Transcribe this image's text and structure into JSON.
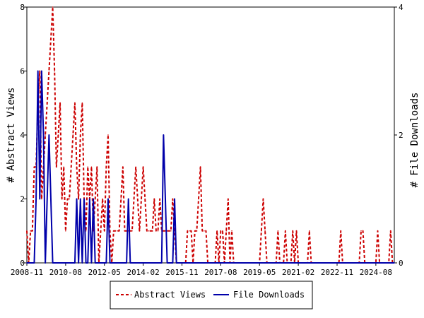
{
  "chart_data": {
    "type": "line",
    "x_start": "2008-11",
    "x_end": "2025-06",
    "x_ticks": [
      "2008-11",
      "2010-08",
      "2012-05",
      "2014-02",
      "2015-11",
      "2017-08",
      "2019-05",
      "2021-02",
      "2022-11",
      "2024-08"
    ],
    "y_left": {
      "label": "# Abstract Views",
      "ylim": [
        0,
        8
      ],
      "ticks": [
        "0",
        "2",
        "4",
        "6",
        "8"
      ]
    },
    "y_right": {
      "label": "# File Downloads",
      "ylim": [
        0,
        4
      ],
      "ticks": [
        "0",
        "2",
        "4"
      ]
    },
    "legend_position": "bottom-center",
    "series": [
      {
        "name": "Abstract Views",
        "axis": "left",
        "color": "#cc0000",
        "style": "dashed",
        "points": [
          [
            "2008-11",
            1
          ],
          [
            "2008-12",
            0
          ],
          [
            "2009-01",
            1
          ],
          [
            "2009-02",
            1
          ],
          [
            "2009-03",
            3
          ],
          [
            "2009-04",
            3
          ],
          [
            "2009-05",
            5
          ],
          [
            "2009-06",
            6
          ],
          [
            "2009-07",
            2
          ],
          [
            "2009-08",
            3
          ],
          [
            "2009-09",
            4
          ],
          [
            "2009-10",
            5
          ],
          [
            "2009-11",
            6
          ],
          [
            "2009-12",
            7
          ],
          [
            "2010-01",
            8
          ],
          [
            "2010-02",
            6
          ],
          [
            "2010-03",
            3
          ],
          [
            "2010-04",
            4
          ],
          [
            "2010-05",
            5
          ],
          [
            "2010-06",
            2
          ],
          [
            "2010-07",
            3
          ],
          [
            "2010-08",
            1
          ],
          [
            "2010-09",
            2
          ],
          [
            "2010-10",
            2
          ],
          [
            "2010-11",
            3
          ],
          [
            "2010-12",
            4
          ],
          [
            "2011-01",
            5
          ],
          [
            "2011-02",
            3
          ],
          [
            "2011-03",
            2
          ],
          [
            "2011-04",
            4
          ],
          [
            "2011-05",
            5
          ],
          [
            "2011-06",
            2
          ],
          [
            "2011-07",
            1
          ],
          [
            "2011-08",
            3
          ],
          [
            "2011-09",
            2
          ],
          [
            "2011-10",
            3
          ],
          [
            "2011-11",
            1
          ],
          [
            "2011-12",
            2
          ],
          [
            "2012-01",
            3
          ],
          [
            "2012-02",
            0
          ],
          [
            "2012-03",
            1
          ],
          [
            "2012-04",
            2
          ],
          [
            "2012-05",
            1
          ],
          [
            "2012-06",
            3
          ],
          [
            "2012-07",
            4
          ],
          [
            "2012-08",
            1
          ],
          [
            "2012-09",
            0
          ],
          [
            "2012-10",
            1
          ],
          [
            "2012-11",
            1
          ],
          [
            "2012-12",
            1
          ],
          [
            "2013-01",
            1
          ],
          [
            "2013-02",
            2
          ],
          [
            "2013-03",
            3
          ],
          [
            "2013-04",
            1
          ],
          [
            "2013-05",
            1
          ],
          [
            "2013-06",
            1
          ],
          [
            "2013-07",
            1
          ],
          [
            "2013-08",
            1
          ],
          [
            "2013-09",
            2
          ],
          [
            "2013-10",
            3
          ],
          [
            "2013-11",
            2
          ],
          [
            "2013-12",
            1
          ],
          [
            "2014-01",
            2
          ],
          [
            "2014-02",
            3
          ],
          [
            "2014-03",
            2
          ],
          [
            "2014-04",
            1
          ],
          [
            "2014-05",
            1
          ],
          [
            "2014-06",
            1
          ],
          [
            "2014-07",
            1
          ],
          [
            "2014-08",
            2
          ],
          [
            "2014-09",
            1
          ],
          [
            "2014-10",
            1
          ],
          [
            "2014-11",
            2
          ],
          [
            "2014-12",
            1
          ],
          [
            "2015-01",
            1
          ],
          [
            "2015-02",
            1
          ],
          [
            "2015-03",
            1
          ],
          [
            "2015-04",
            1
          ],
          [
            "2015-05",
            1
          ],
          [
            "2015-06",
            2
          ],
          [
            "2015-07",
            1
          ],
          [
            "2015-08",
            0
          ],
          [
            "2015-09",
            0
          ],
          [
            "2015-10",
            0
          ],
          [
            "2016-01",
            0
          ],
          [
            "2016-02",
            1
          ],
          [
            "2016-03",
            1
          ],
          [
            "2016-04",
            1
          ],
          [
            "2016-05",
            0
          ],
          [
            "2016-06",
            1
          ],
          [
            "2016-07",
            1
          ],
          [
            "2016-08",
            2
          ],
          [
            "2016-09",
            3
          ],
          [
            "2016-10",
            1
          ],
          [
            "2016-11",
            1
          ],
          [
            "2016-12",
            1
          ],
          [
            "2017-01",
            0
          ],
          [
            "2017-02",
            0
          ],
          [
            "2017-03",
            0
          ],
          [
            "2017-04",
            0
          ],
          [
            "2017-05",
            0
          ],
          [
            "2017-06",
            1
          ],
          [
            "2017-07",
            0
          ],
          [
            "2017-08",
            1
          ],
          [
            "2017-09",
            1
          ],
          [
            "2017-10",
            0
          ],
          [
            "2017-11",
            1
          ],
          [
            "2017-12",
            2
          ],
          [
            "2018-01",
            0
          ],
          [
            "2018-02",
            1
          ],
          [
            "2018-03",
            0
          ],
          [
            "2019-05",
            0
          ],
          [
            "2019-06",
            1
          ],
          [
            "2019-07",
            2
          ],
          [
            "2019-08",
            1
          ],
          [
            "2019-09",
            0
          ],
          [
            "2020-02",
            0
          ],
          [
            "2020-03",
            1
          ],
          [
            "2020-04",
            0
          ],
          [
            "2020-06",
            0
          ],
          [
            "2020-07",
            1
          ],
          [
            "2020-08",
            0
          ],
          [
            "2020-10",
            0
          ],
          [
            "2020-11",
            1
          ],
          [
            "2020-12",
            0
          ],
          [
            "2021-01",
            1
          ],
          [
            "2021-02",
            0
          ],
          [
            "2021-07",
            0
          ],
          [
            "2021-08",
            1
          ],
          [
            "2021-09",
            0
          ],
          [
            "2022-12",
            0
          ],
          [
            "2023-01",
            1
          ],
          [
            "2023-02",
            0
          ],
          [
            "2023-11",
            0
          ],
          [
            "2023-12",
            1
          ],
          [
            "2024-01",
            1
          ],
          [
            "2024-02",
            0
          ],
          [
            "2024-08",
            0
          ],
          [
            "2024-09",
            1
          ],
          [
            "2024-10",
            0
          ],
          [
            "2025-03",
            0
          ],
          [
            "2025-04",
            1
          ],
          [
            "2025-05",
            0
          ]
        ]
      },
      {
        "name": "File Downloads",
        "axis": "right",
        "color": "#0000aa",
        "style": "solid",
        "points": [
          [
            "2008-11",
            0
          ],
          [
            "2009-03",
            0
          ],
          [
            "2009-04",
            1
          ],
          [
            "2009-05",
            3
          ],
          [
            "2009-06",
            1
          ],
          [
            "2009-07",
            3
          ],
          [
            "2009-08",
            2
          ],
          [
            "2009-09",
            0
          ],
          [
            "2009-10",
            1
          ],
          [
            "2009-11",
            2
          ],
          [
            "2009-12",
            1
          ],
          [
            "2010-01",
            0
          ],
          [
            "2010-02",
            0
          ],
          [
            "2011-01",
            0
          ],
          [
            "2011-02",
            1
          ],
          [
            "2011-03",
            0
          ],
          [
            "2011-04",
            1
          ],
          [
            "2011-05",
            0
          ],
          [
            "2011-06",
            1
          ],
          [
            "2011-07",
            0
          ],
          [
            "2011-08",
            0
          ],
          [
            "2011-09",
            1
          ],
          [
            "2011-10",
            0
          ],
          [
            "2011-11",
            1
          ],
          [
            "2011-12",
            0
          ],
          [
            "2012-06",
            0
          ],
          [
            "2012-07",
            1
          ],
          [
            "2012-08",
            0
          ],
          [
            "2013-05",
            0
          ],
          [
            "2013-06",
            1
          ],
          [
            "2013-07",
            0
          ],
          [
            "2014-12",
            0
          ],
          [
            "2015-01",
            2
          ],
          [
            "2015-02",
            1
          ],
          [
            "2015-03",
            0
          ],
          [
            "2015-06",
            0
          ],
          [
            "2015-07",
            1
          ],
          [
            "2015-08",
            0
          ],
          [
            "2025-06",
            0
          ]
        ]
      }
    ]
  }
}
